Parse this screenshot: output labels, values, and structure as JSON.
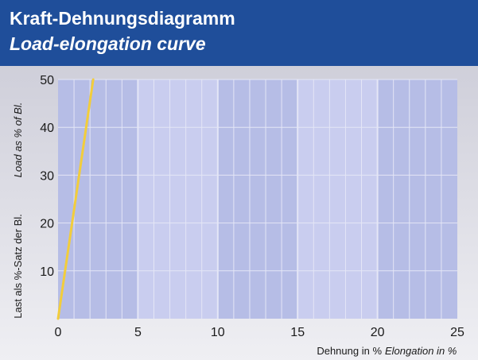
{
  "header": {
    "title": "Kraft-Dehnungsdiagramm",
    "subtitle": "Load-elongation curve"
  },
  "colors": {
    "header_bg": "#1f4e9a",
    "plot_band_dark": "#b6bde6",
    "plot_band_light": "#c9cdef",
    "grid": "#e4e6f6",
    "curve": "#f2cd3c"
  },
  "chart_data": {
    "type": "line",
    "xlabel_de": "Dehnung in %",
    "xlabel_en": "Elongation in %",
    "ylabel_de": "Last als %-Satz der Bl.",
    "ylabel_en": "Load as % of Bl.",
    "xlim": [
      0,
      25
    ],
    "ylim": [
      0,
      50
    ],
    "xticks": [
      0,
      5,
      10,
      15,
      20,
      25
    ],
    "yticks": [
      10,
      20,
      30,
      40,
      50
    ],
    "grid": true,
    "series": [
      {
        "x": [
          0,
          2.2
        ],
        "y": [
          0,
          50
        ]
      }
    ]
  }
}
